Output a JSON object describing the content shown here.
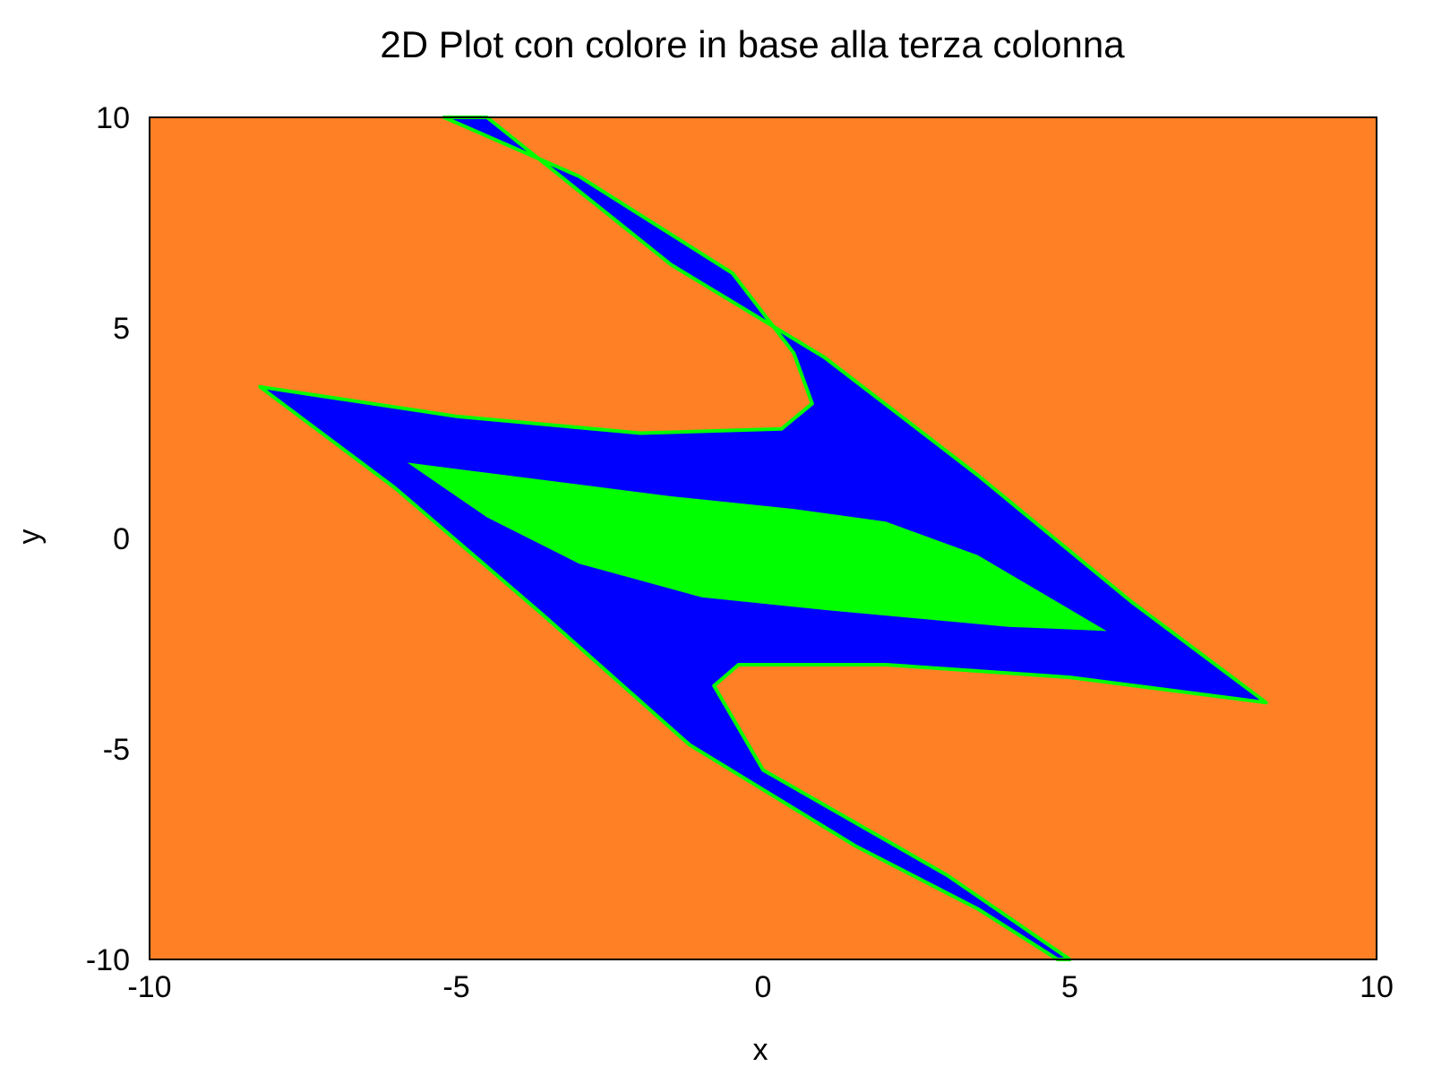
{
  "chart_data": {
    "type": "heatmap",
    "title": "2D Plot con colore in base alla terza colonna",
    "xlabel": "x",
    "ylabel": "y",
    "xlim": [
      -10,
      10
    ],
    "ylim": [
      -10,
      10
    ],
    "x_ticks": [
      "-10",
      "-5",
      "0",
      "5",
      "10"
    ],
    "y_ticks": [
      "10",
      "5",
      "0",
      "-5",
      "-10"
    ],
    "x_tick_values": [
      -10,
      -5,
      0,
      5,
      10
    ],
    "y_tick_values": [
      10,
      5,
      0,
      -5,
      -10
    ],
    "grid": false,
    "colors": {
      "background": "#ff8025",
      "blue": "#0000ff",
      "green": "#00ff00",
      "frame": "#000000"
    },
    "regions": [
      {
        "color": "blue",
        "polygon": [
          [
            -5.2,
            10
          ],
          [
            -3.0,
            8.6
          ],
          [
            -0.5,
            6.3
          ],
          [
            0.5,
            4.4
          ],
          [
            0.8,
            3.2
          ],
          [
            0.3,
            2.6
          ],
          [
            -2.0,
            2.5
          ],
          [
            -5.0,
            2.9
          ],
          [
            -8.2,
            3.6
          ],
          [
            -6.0,
            1.2
          ],
          [
            -3.6,
            -1.8
          ],
          [
            -1.2,
            -4.9
          ],
          [
            1.5,
            -7.3
          ],
          [
            3.5,
            -8.8
          ],
          [
            4.8,
            -10
          ],
          [
            5.0,
            -10
          ],
          [
            3.0,
            -8.0
          ],
          [
            0.0,
            -5.5
          ],
          [
            -0.8,
            -3.5
          ],
          [
            -0.4,
            -3.0
          ],
          [
            2.0,
            -3.0
          ],
          [
            5.0,
            -3.3
          ],
          [
            8.2,
            -3.9
          ],
          [
            6.0,
            -1.5
          ],
          [
            3.5,
            1.5
          ],
          [
            1.0,
            4.3
          ],
          [
            -1.5,
            6.5
          ],
          [
            -4.5,
            10
          ]
        ]
      },
      {
        "color": "green",
        "polygon": [
          [
            -5.8,
            1.8
          ],
          [
            -1.5,
            1.0
          ],
          [
            0.5,
            0.7
          ],
          [
            2.0,
            0.4
          ],
          [
            3.5,
            -0.4
          ],
          [
            5.6,
            -2.2
          ],
          [
            4.0,
            -2.1
          ],
          [
            1.0,
            -1.7
          ],
          [
            -1.0,
            -1.4
          ],
          [
            -3.0,
            -0.6
          ],
          [
            -4.5,
            0.5
          ]
        ]
      }
    ]
  }
}
